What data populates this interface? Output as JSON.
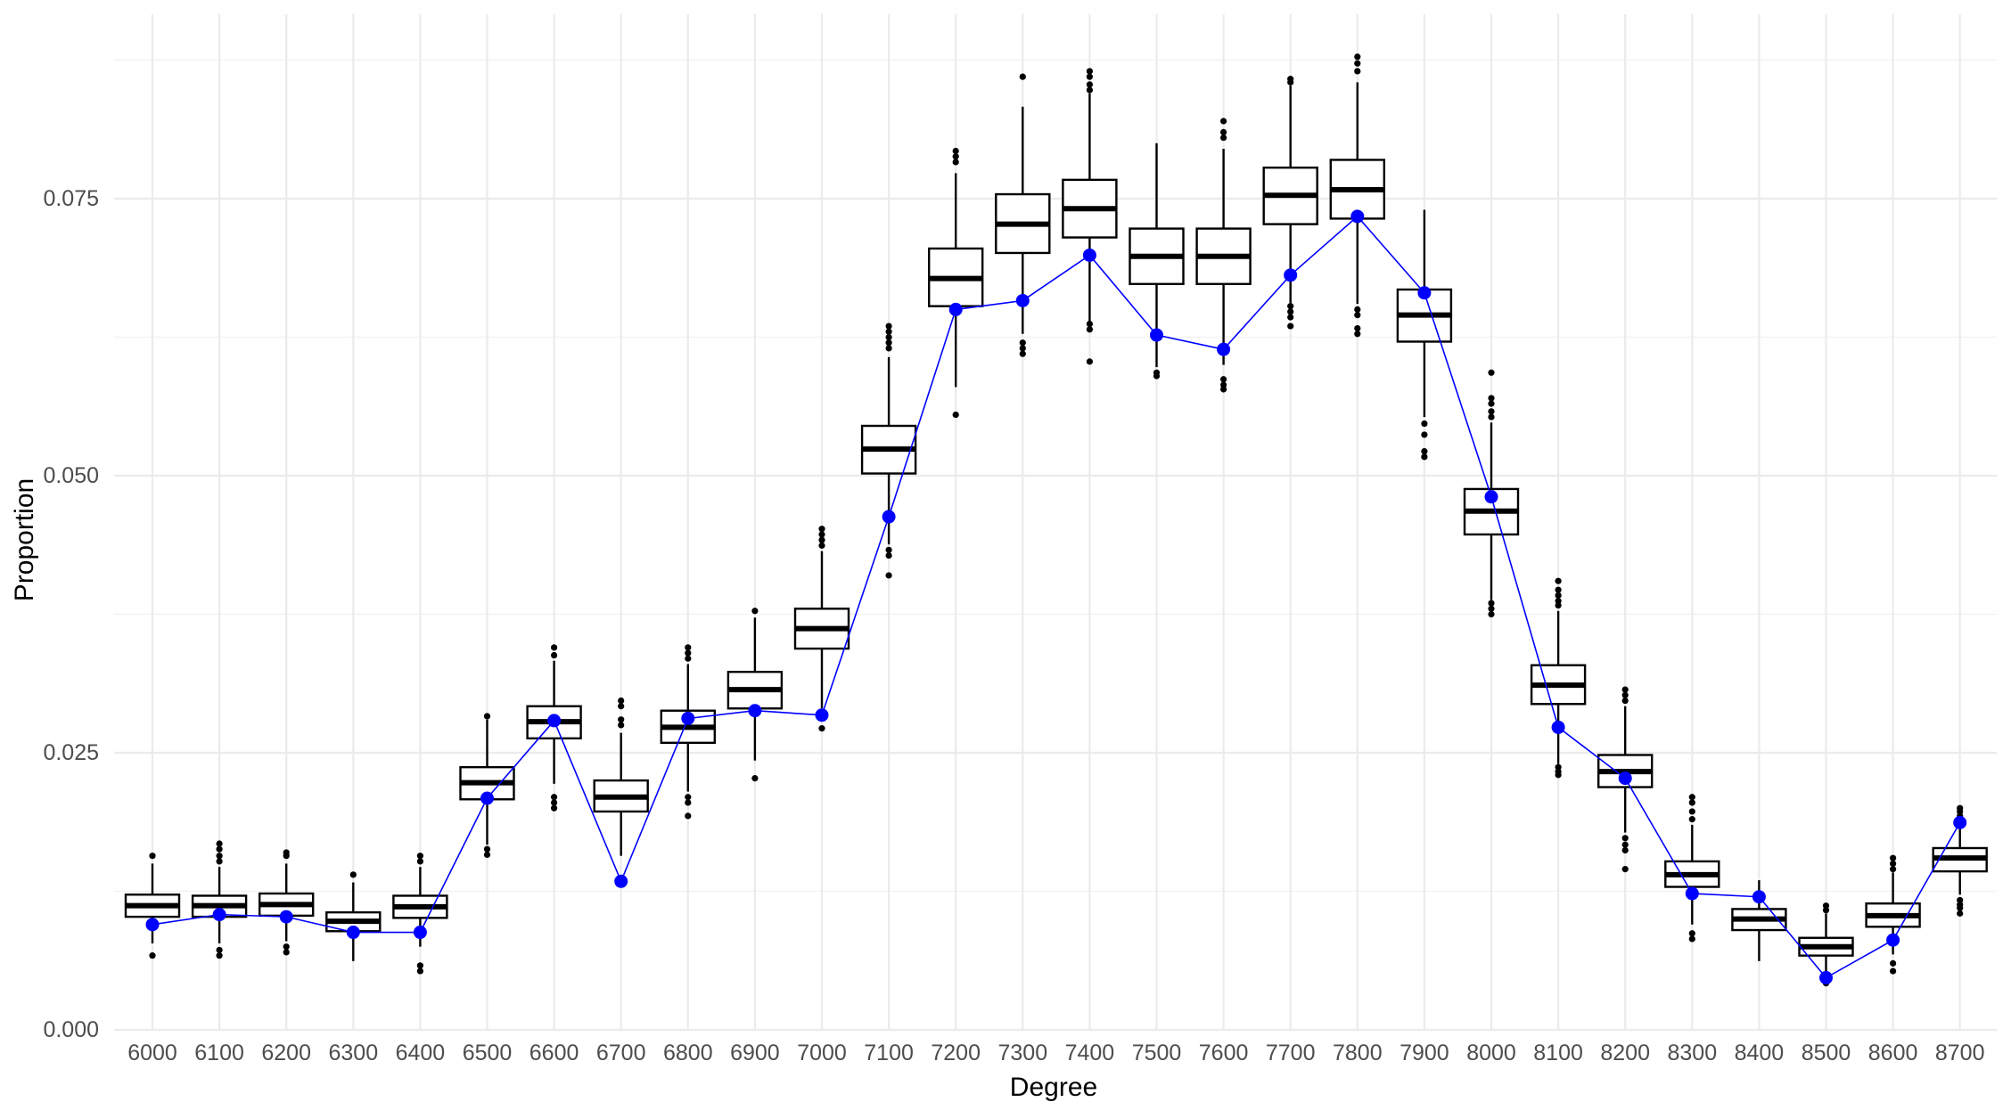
{
  "chart_data": {
    "type": "boxplot",
    "xlabel": "Degree",
    "ylabel": "Proportion",
    "ylim": [
      0,
      0.0875
    ],
    "y_ticks": [
      0.0,
      0.025,
      0.05,
      0.075
    ],
    "y_tick_labels": [
      "0.000",
      "0.025",
      "0.050",
      "0.075"
    ],
    "y_minor_ticks": [
      0.0125,
      0.0375,
      0.0625,
      0.0875
    ],
    "grid": true,
    "colors": {
      "box_stroke": "#000000",
      "observed": "#0000ff",
      "grid": "#ebebeb"
    },
    "categories": [
      "6000",
      "6100",
      "6200",
      "6300",
      "6400",
      "6500",
      "6600",
      "6700",
      "6800",
      "6900",
      "7000",
      "7100",
      "7200",
      "7300",
      "7400",
      "7500",
      "7600",
      "7700",
      "7800",
      "7900",
      "8000",
      "8100",
      "8200",
      "8300",
      "8400",
      "8500",
      "8600",
      "8700"
    ],
    "boxes": [
      {
        "q1": 0.0102,
        "median": 0.0112,
        "q3": 0.0122,
        "whisker_low": 0.0078,
        "whisker_high": 0.015,
        "outliers": [
          0.0067,
          0.0157
        ]
      },
      {
        "q1": 0.0102,
        "median": 0.0112,
        "q3": 0.0121,
        "whisker_low": 0.0078,
        "whisker_high": 0.0147,
        "outliers": [
          0.0067,
          0.0072,
          0.0152,
          0.0157,
          0.0163,
          0.0168
        ]
      },
      {
        "q1": 0.0103,
        "median": 0.0113,
        "q3": 0.0123,
        "whisker_low": 0.008,
        "whisker_high": 0.015,
        "outliers": [
          0.007,
          0.0075,
          0.0157,
          0.016
        ]
      },
      {
        "q1": 0.0089,
        "median": 0.0098,
        "q3": 0.0106,
        "whisker_low": 0.0062,
        "whisker_high": 0.0133,
        "outliers": [
          0.014
        ]
      },
      {
        "q1": 0.0101,
        "median": 0.0111,
        "q3": 0.0121,
        "whisker_low": 0.0075,
        "whisker_high": 0.0147,
        "outliers": [
          0.0053,
          0.0058,
          0.0152,
          0.0157
        ]
      },
      {
        "q1": 0.0208,
        "median": 0.0223,
        "q3": 0.0237,
        "whisker_low": 0.0167,
        "whisker_high": 0.028,
        "outliers": [
          0.0158,
          0.0163,
          0.0283
        ]
      },
      {
        "q1": 0.0263,
        "median": 0.0278,
        "q3": 0.0292,
        "whisker_low": 0.0222,
        "whisker_high": 0.0333,
        "outliers": [
          0.02,
          0.0205,
          0.021,
          0.0338,
          0.0345
        ]
      },
      {
        "q1": 0.0197,
        "median": 0.021,
        "q3": 0.0225,
        "whisker_low": 0.0157,
        "whisker_high": 0.0268,
        "outliers": [
          0.0275,
          0.028,
          0.0292,
          0.0297
        ]
      },
      {
        "q1": 0.0259,
        "median": 0.0273,
        "q3": 0.0288,
        "whisker_low": 0.0215,
        "whisker_high": 0.033,
        "outliers": [
          0.0193,
          0.0205,
          0.021,
          0.0335,
          0.034,
          0.0345
        ]
      },
      {
        "q1": 0.029,
        "median": 0.0307,
        "q3": 0.0323,
        "whisker_low": 0.0243,
        "whisker_high": 0.0372,
        "outliers": [
          0.0227,
          0.0378
        ]
      },
      {
        "q1": 0.0344,
        "median": 0.0362,
        "q3": 0.038,
        "whisker_low": 0.029,
        "whisker_high": 0.0432,
        "outliers": [
          0.0272,
          0.0437,
          0.0442,
          0.0447,
          0.0452
        ]
      },
      {
        "q1": 0.0502,
        "median": 0.0524,
        "q3": 0.0545,
        "whisker_low": 0.0438,
        "whisker_high": 0.0607,
        "outliers": [
          0.041,
          0.0428,
          0.0433,
          0.0615,
          0.062,
          0.0625,
          0.063,
          0.0635
        ]
      },
      {
        "q1": 0.0653,
        "median": 0.0678,
        "q3": 0.0705,
        "whisker_low": 0.058,
        "whisker_high": 0.0773,
        "outliers": [
          0.0555,
          0.0783,
          0.0788,
          0.0793
        ]
      },
      {
        "q1": 0.0701,
        "median": 0.0727,
        "q3": 0.0754,
        "whisker_low": 0.0628,
        "whisker_high": 0.0833,
        "outliers": [
          0.061,
          0.0615,
          0.062,
          0.086
        ]
      },
      {
        "q1": 0.0715,
        "median": 0.0741,
        "q3": 0.0767,
        "whisker_low": 0.0637,
        "whisker_high": 0.0845,
        "outliers": [
          0.0603,
          0.0632,
          0.0637,
          0.0848,
          0.0853,
          0.086,
          0.0865
        ]
      },
      {
        "q1": 0.0673,
        "median": 0.0698,
        "q3": 0.0723,
        "whisker_low": 0.0598,
        "whisker_high": 0.08,
        "outliers": [
          0.059,
          0.0593
        ]
      },
      {
        "q1": 0.0673,
        "median": 0.0698,
        "q3": 0.0723,
        "whisker_low": 0.06,
        "whisker_high": 0.0795,
        "outliers": [
          0.0578,
          0.0582,
          0.0587,
          0.0805,
          0.081,
          0.082
        ]
      },
      {
        "q1": 0.0727,
        "median": 0.0753,
        "q3": 0.0778,
        "whisker_low": 0.065,
        "whisker_high": 0.0852,
        "outliers": [
          0.0635,
          0.0643,
          0.0648,
          0.0653,
          0.0855,
          0.0858
        ]
      },
      {
        "q1": 0.0732,
        "median": 0.0758,
        "q3": 0.0785,
        "whisker_low": 0.0655,
        "whisker_high": 0.0855,
        "outliers": [
          0.0628,
          0.0633,
          0.0645,
          0.065,
          0.0865,
          0.0872,
          0.0878
        ]
      },
      {
        "q1": 0.0621,
        "median": 0.0645,
        "q3": 0.0668,
        "whisker_low": 0.0553,
        "whisker_high": 0.074,
        "outliers": [
          0.0517,
          0.0522,
          0.0537,
          0.0547
        ]
      },
      {
        "q1": 0.0447,
        "median": 0.0468,
        "q3": 0.0488,
        "whisker_low": 0.0388,
        "whisker_high": 0.0548,
        "outliers": [
          0.0375,
          0.038,
          0.0385,
          0.0553,
          0.0558,
          0.0565,
          0.057,
          0.0593
        ]
      },
      {
        "q1": 0.0294,
        "median": 0.0311,
        "q3": 0.0329,
        "whisker_low": 0.024,
        "whisker_high": 0.0378,
        "outliers": [
          0.023,
          0.0233,
          0.0237,
          0.0383,
          0.0387,
          0.0392,
          0.0397,
          0.0405
        ]
      },
      {
        "q1": 0.0219,
        "median": 0.0233,
        "q3": 0.0248,
        "whisker_low": 0.0178,
        "whisker_high": 0.0292,
        "outliers": [
          0.0145,
          0.0162,
          0.0167,
          0.0173,
          0.0297,
          0.0302,
          0.0307
        ]
      },
      {
        "q1": 0.0129,
        "median": 0.014,
        "q3": 0.0152,
        "whisker_low": 0.0095,
        "whisker_high": 0.0185,
        "outliers": [
          0.0082,
          0.0087,
          0.019,
          0.0197,
          0.0205,
          0.021
        ]
      },
      {
        "q1": 0.009,
        "median": 0.01,
        "q3": 0.0109,
        "whisker_low": 0.0062,
        "whisker_high": 0.0135,
        "outliers": []
      },
      {
        "q1": 0.0067,
        "median": 0.0075,
        "q3": 0.0083,
        "whisker_low": 0.0048,
        "whisker_high": 0.0105,
        "outliers": [
          0.0042,
          0.0108,
          0.0112
        ]
      },
      {
        "q1": 0.0093,
        "median": 0.0103,
        "q3": 0.0114,
        "whisker_low": 0.0068,
        "whisker_high": 0.0142,
        "outliers": [
          0.0053,
          0.006,
          0.0145,
          0.015,
          0.0155
        ]
      },
      {
        "q1": 0.0143,
        "median": 0.0155,
        "q3": 0.0164,
        "whisker_low": 0.0122,
        "whisker_high": 0.019,
        "outliers": [
          0.0105,
          0.011,
          0.0113,
          0.0117,
          0.0193,
          0.0197,
          0.02
        ]
      }
    ],
    "observed": [
      0.0095,
      0.0104,
      0.0102,
      0.0088,
      0.0088,
      0.0209,
      0.0279,
      0.0134,
      0.0281,
      0.0288,
      0.0284,
      0.0463,
      0.065,
      0.0658,
      0.0699,
      0.0627,
      0.0614,
      0.0681,
      0.0734,
      0.0665,
      0.0481,
      0.0273,
      0.0227,
      0.0123,
      0.012,
      0.0047,
      0.0081,
      0.0187
    ]
  }
}
